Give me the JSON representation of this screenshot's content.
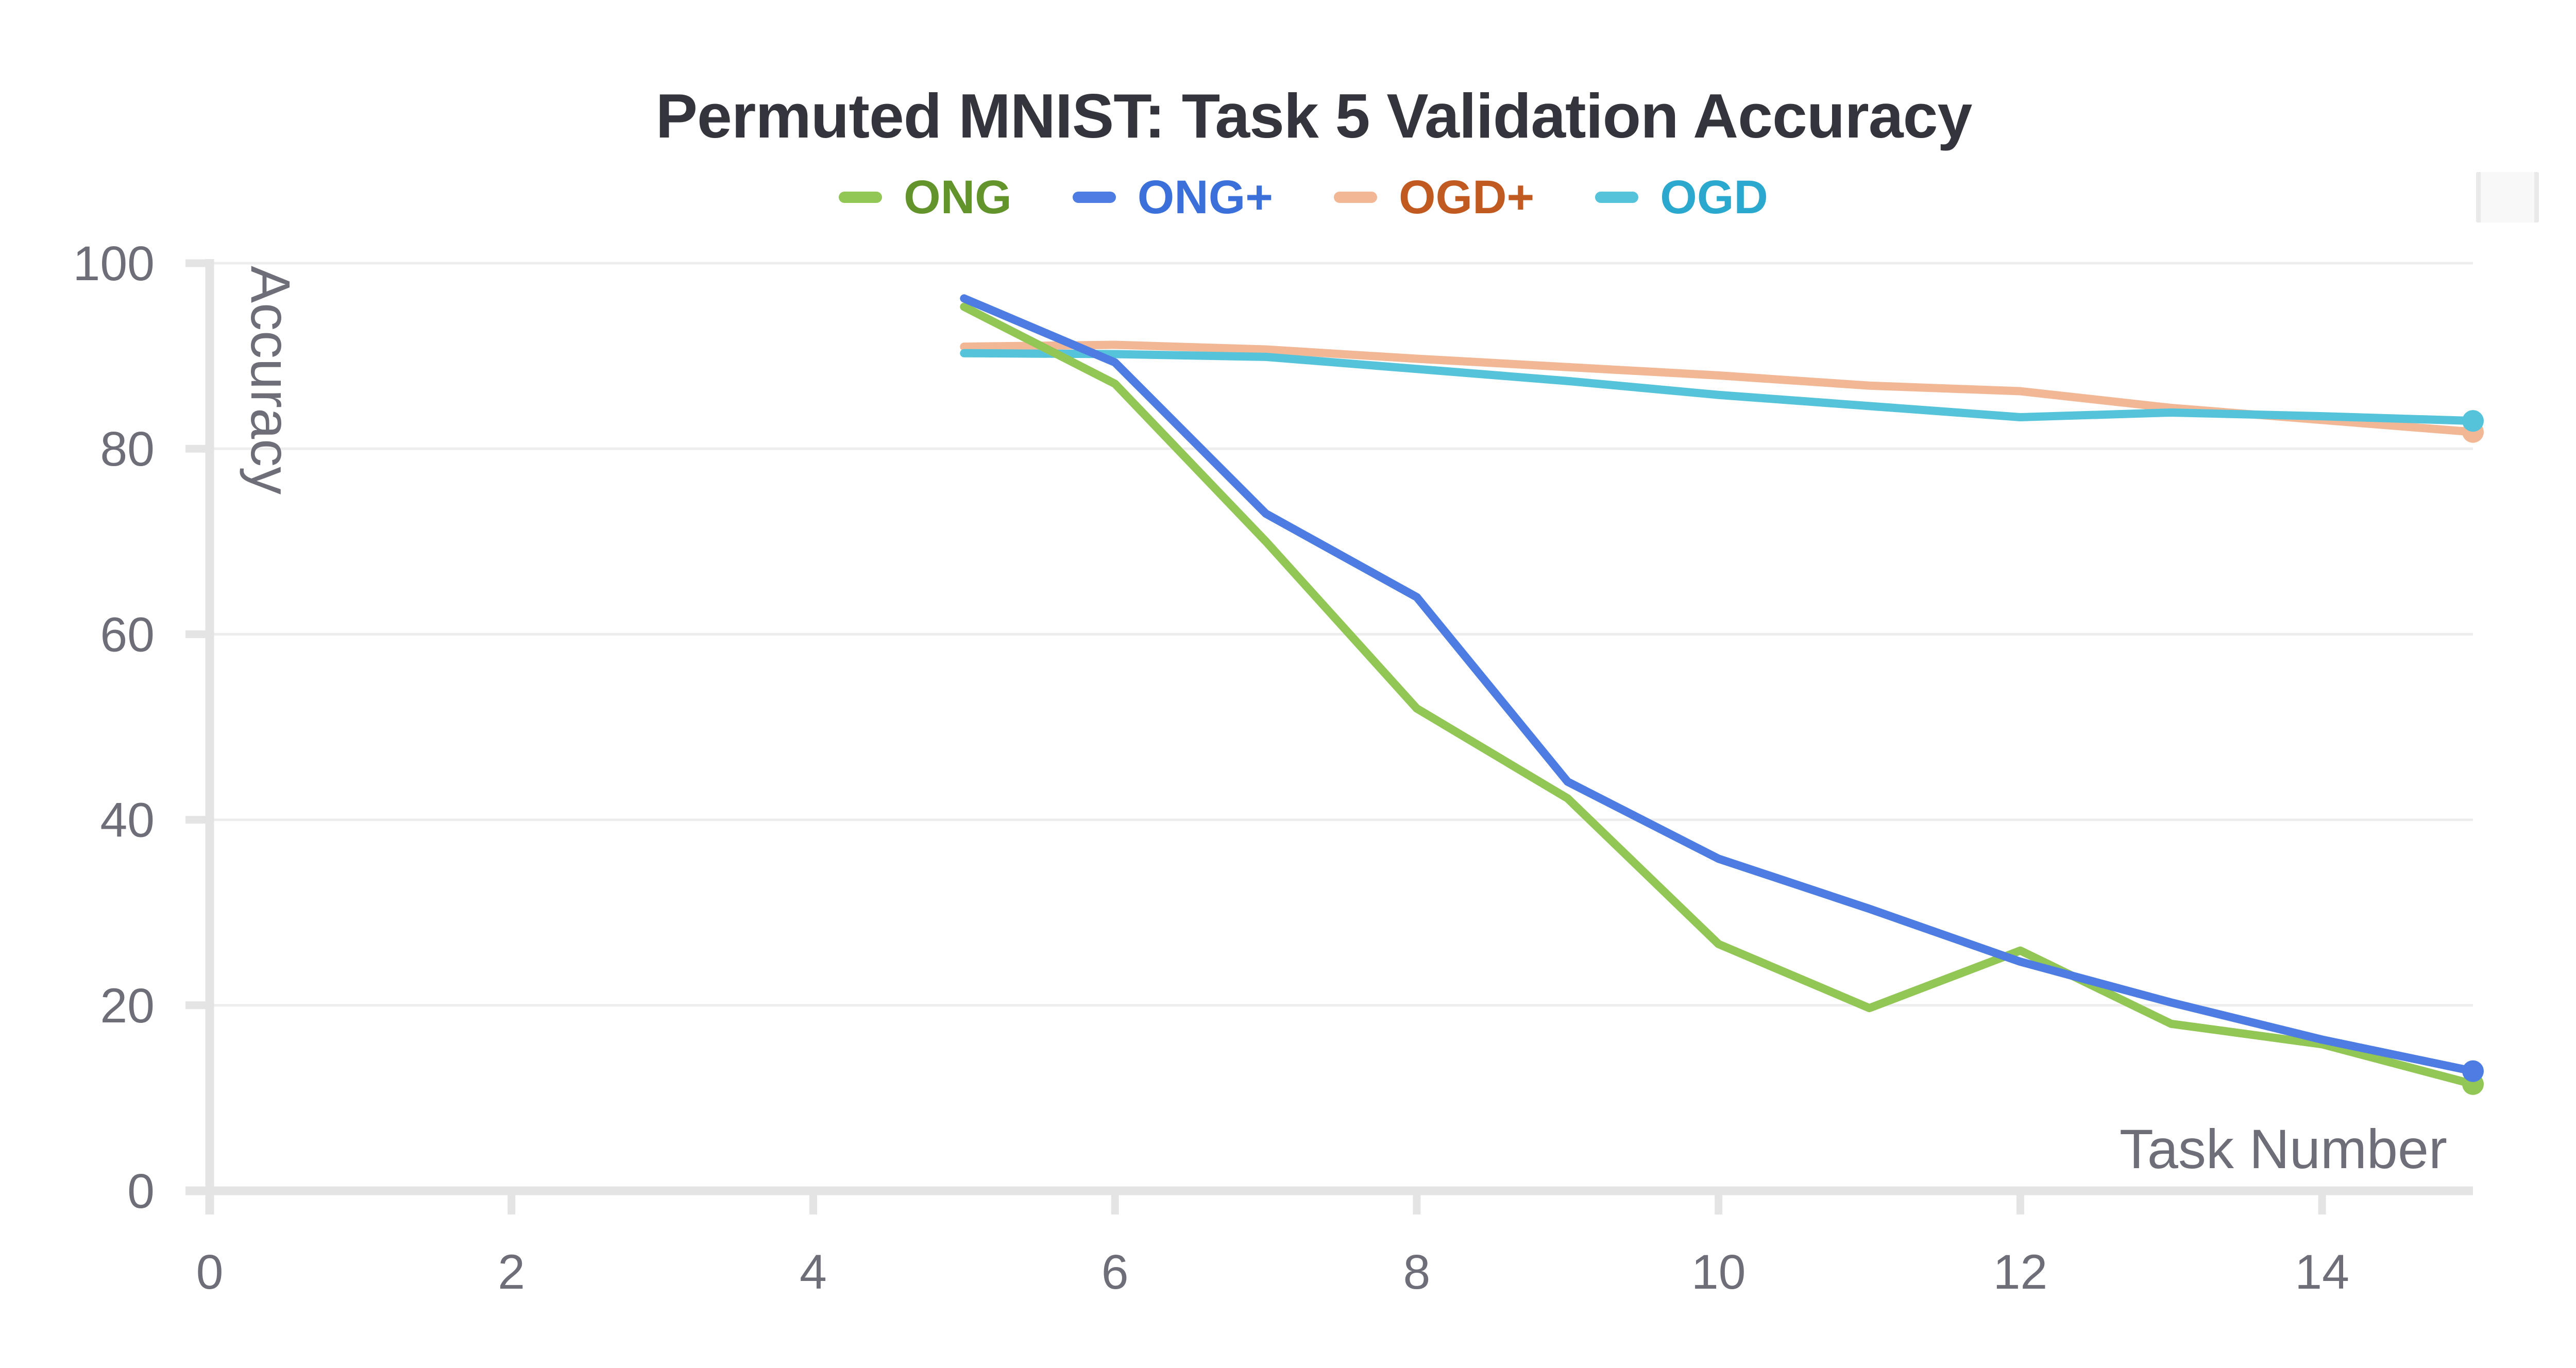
{
  "chart_data": {
    "type": "line",
    "title": "Permuted MNIST: Task 5 Validation Accuracy",
    "xlabel": "Task Number",
    "ylabel": "Accuracy",
    "x": [
      5,
      6,
      7,
      8,
      9,
      10,
      11,
      12,
      13,
      14,
      15
    ],
    "series": [
      {
        "name": "ONG",
        "color": "#92c655",
        "label_color": "#63942c",
        "values": [
          95.3,
          87.0,
          70.0,
          52.0,
          42.3,
          26.6,
          19.7,
          25.9,
          18.0,
          15.8,
          11.5
        ]
      },
      {
        "name": "ONG+",
        "color": "#4d7ce2",
        "label_color": "#3b70da",
        "values": [
          96.2,
          89.3,
          73.0,
          64.0,
          44.1,
          35.8,
          30.4,
          24.7,
          20.3,
          16.3,
          12.9
        ]
      },
      {
        "name": "OGD+",
        "color": "#f2b795",
        "label_color": "#c05a20",
        "values": [
          91.0,
          91.2,
          90.7,
          89.7,
          88.8,
          87.9,
          86.8,
          86.2,
          84.4,
          83.1,
          81.8
        ]
      },
      {
        "name": "OGD",
        "color": "#55c3da",
        "label_color": "#2ba8cd",
        "values": [
          90.3,
          90.2,
          89.9,
          88.6,
          87.3,
          85.8,
          84.6,
          83.4,
          83.9,
          83.5,
          83.0
        ]
      }
    ],
    "x_ticks": [
      0,
      2,
      4,
      6,
      8,
      10,
      12,
      14
    ],
    "y_ticks": [
      0,
      20,
      40,
      60,
      80,
      100
    ],
    "x_range": [
      0,
      15
    ],
    "y_range": [
      0,
      100
    ],
    "legend_position": "top-center",
    "grid": "horizontal-only",
    "end_markers": true,
    "draw_order": [
      "OGD+",
      "OGD",
      "ONG",
      "ONG+"
    ],
    "colors": {
      "grid": "#ededed",
      "axis": "#e4e4e4",
      "tick_label": "#6e6e79",
      "axis_title": "#6e6e79",
      "title": "#34343c"
    }
  }
}
